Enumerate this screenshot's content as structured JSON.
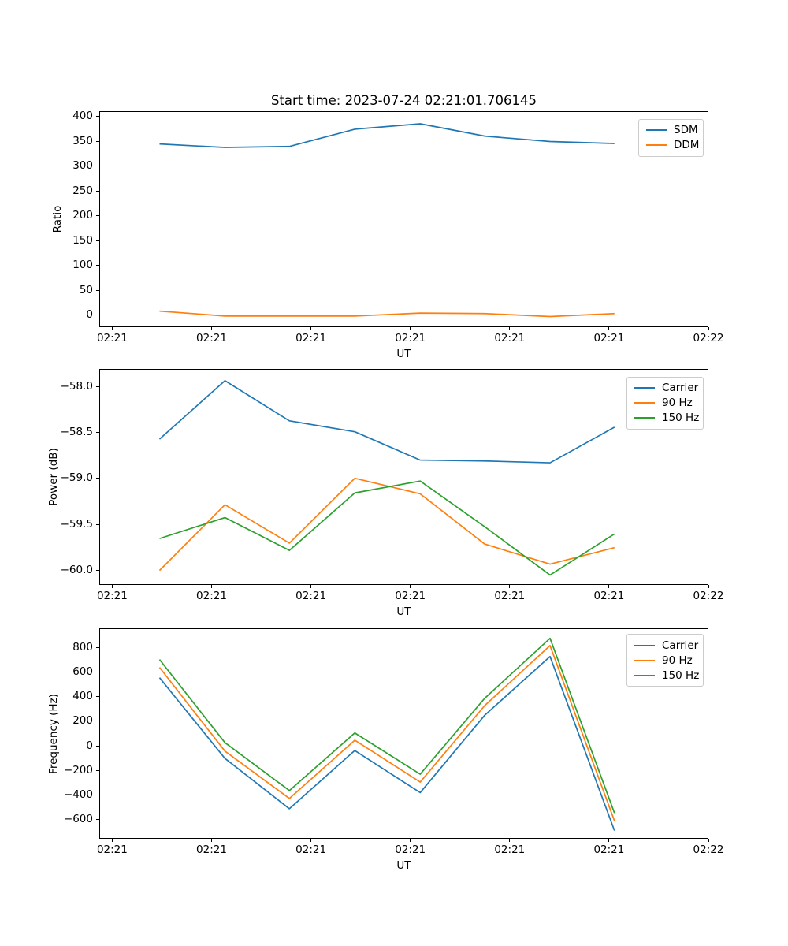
{
  "figure_title": "Start time: 2023-07-24 02:21:01.706145",
  "chart_data": [
    {
      "type": "line",
      "name": "ratio",
      "title": "Start time: 2023-07-24 02:21:01.706145",
      "xlabel": "UT",
      "ylabel": "Ratio",
      "grid": false,
      "legend_position": "upper right",
      "x_seconds": [
        4.7,
        11.3,
        17.8,
        24.4,
        31.0,
        37.5,
        44.1,
        50.6
      ],
      "series": [
        {
          "name": "SDM",
          "color": "#1f77b4",
          "values": [
            346,
            339,
            341,
            376,
            387,
            362,
            351,
            347
          ]
        },
        {
          "name": "DDM",
          "color": "#ff7f0e",
          "values": [
            7,
            -3,
            -3,
            -3,
            3,
            2,
            -4,
            2
          ]
        }
      ],
      "xlim": [
        -1.3,
        60.0
      ],
      "ylim": [
        -24,
        411
      ],
      "xticks": [
        0,
        10,
        20,
        30,
        40,
        50,
        60
      ],
      "xtick_labels": [
        "02:21",
        "02:21",
        "02:21",
        "02:21",
        "02:21",
        "02:21",
        "02:22"
      ],
      "yticks": [
        400,
        350,
        300,
        250,
        200,
        150,
        100,
        50,
        0
      ],
      "ytick_labels": [
        "400",
        "350",
        "300",
        "250",
        "200",
        "150",
        "100",
        "50",
        "0"
      ]
    },
    {
      "type": "line",
      "name": "power",
      "title": "",
      "xlabel": "UT",
      "ylabel": "Power (dB)",
      "grid": false,
      "legend_position": "upper right",
      "x_seconds": [
        4.7,
        11.3,
        17.8,
        24.4,
        31.0,
        37.5,
        44.1,
        50.6
      ],
      "series": [
        {
          "name": "Carrier",
          "color": "#1f77b4",
          "values": [
            -58.57,
            -57.93,
            -58.37,
            -58.49,
            -58.8,
            -58.81,
            -58.83,
            -58.44
          ]
        },
        {
          "name": "90 Hz",
          "color": "#ff7f0e",
          "values": [
            -60.01,
            -59.29,
            -59.71,
            -59.0,
            -59.17,
            -59.72,
            -59.94,
            -59.76
          ]
        },
        {
          "name": "150 Hz",
          "color": "#2ca02c",
          "values": [
            -59.66,
            -59.43,
            -59.79,
            -59.16,
            -59.03,
            -59.53,
            -60.06,
            -59.61
          ]
        }
      ],
      "xlim": [
        -1.3,
        60.0
      ],
      "ylim": [
        -60.16,
        -57.81
      ],
      "xticks": [
        0,
        10,
        20,
        30,
        40,
        50,
        60
      ],
      "xtick_labels": [
        "02:21",
        "02:21",
        "02:21",
        "02:21",
        "02:21",
        "02:21",
        "02:22"
      ],
      "yticks": [
        -58.0,
        -58.5,
        -59.0,
        -59.5,
        -60.0
      ],
      "ytick_labels": [
        "−58.0",
        "−58.5",
        "−59.0",
        "−59.5",
        "−60.0"
      ]
    },
    {
      "type": "line",
      "name": "frequency",
      "title": "",
      "xlabel": "UT",
      "ylabel": "Frequency (Hz)",
      "grid": false,
      "legend_position": "upper right",
      "x_seconds": [
        4.7,
        11.3,
        17.8,
        24.4,
        31.0,
        37.5,
        44.1,
        50.6
      ],
      "series": [
        {
          "name": "Carrier",
          "color": "#1f77b4",
          "values": [
            560,
            -105,
            -520,
            -40,
            -387,
            250,
            735,
            -700
          ]
        },
        {
          "name": "90 Hz",
          "color": "#ff7f0e",
          "values": [
            645,
            -45,
            -435,
            45,
            -300,
            330,
            825,
            -620
          ]
        },
        {
          "name": "150 Hz",
          "color": "#2ca02c",
          "values": [
            710,
            25,
            -370,
            105,
            -235,
            390,
            885,
            -555
          ]
        }
      ],
      "xlim": [
        -1.3,
        60.0
      ],
      "ylim": [
        -761,
        961
      ],
      "xticks": [
        0,
        10,
        20,
        30,
        40,
        50,
        60
      ],
      "xtick_labels": [
        "02:21",
        "02:21",
        "02:21",
        "02:21",
        "02:21",
        "02:21",
        "02:22"
      ],
      "yticks": [
        800,
        600,
        400,
        200,
        0,
        -200,
        -400,
        -600
      ],
      "ytick_labels": [
        "800",
        "600",
        "400",
        "200",
        "0",
        "−200",
        "−400",
        "−600"
      ]
    }
  ]
}
